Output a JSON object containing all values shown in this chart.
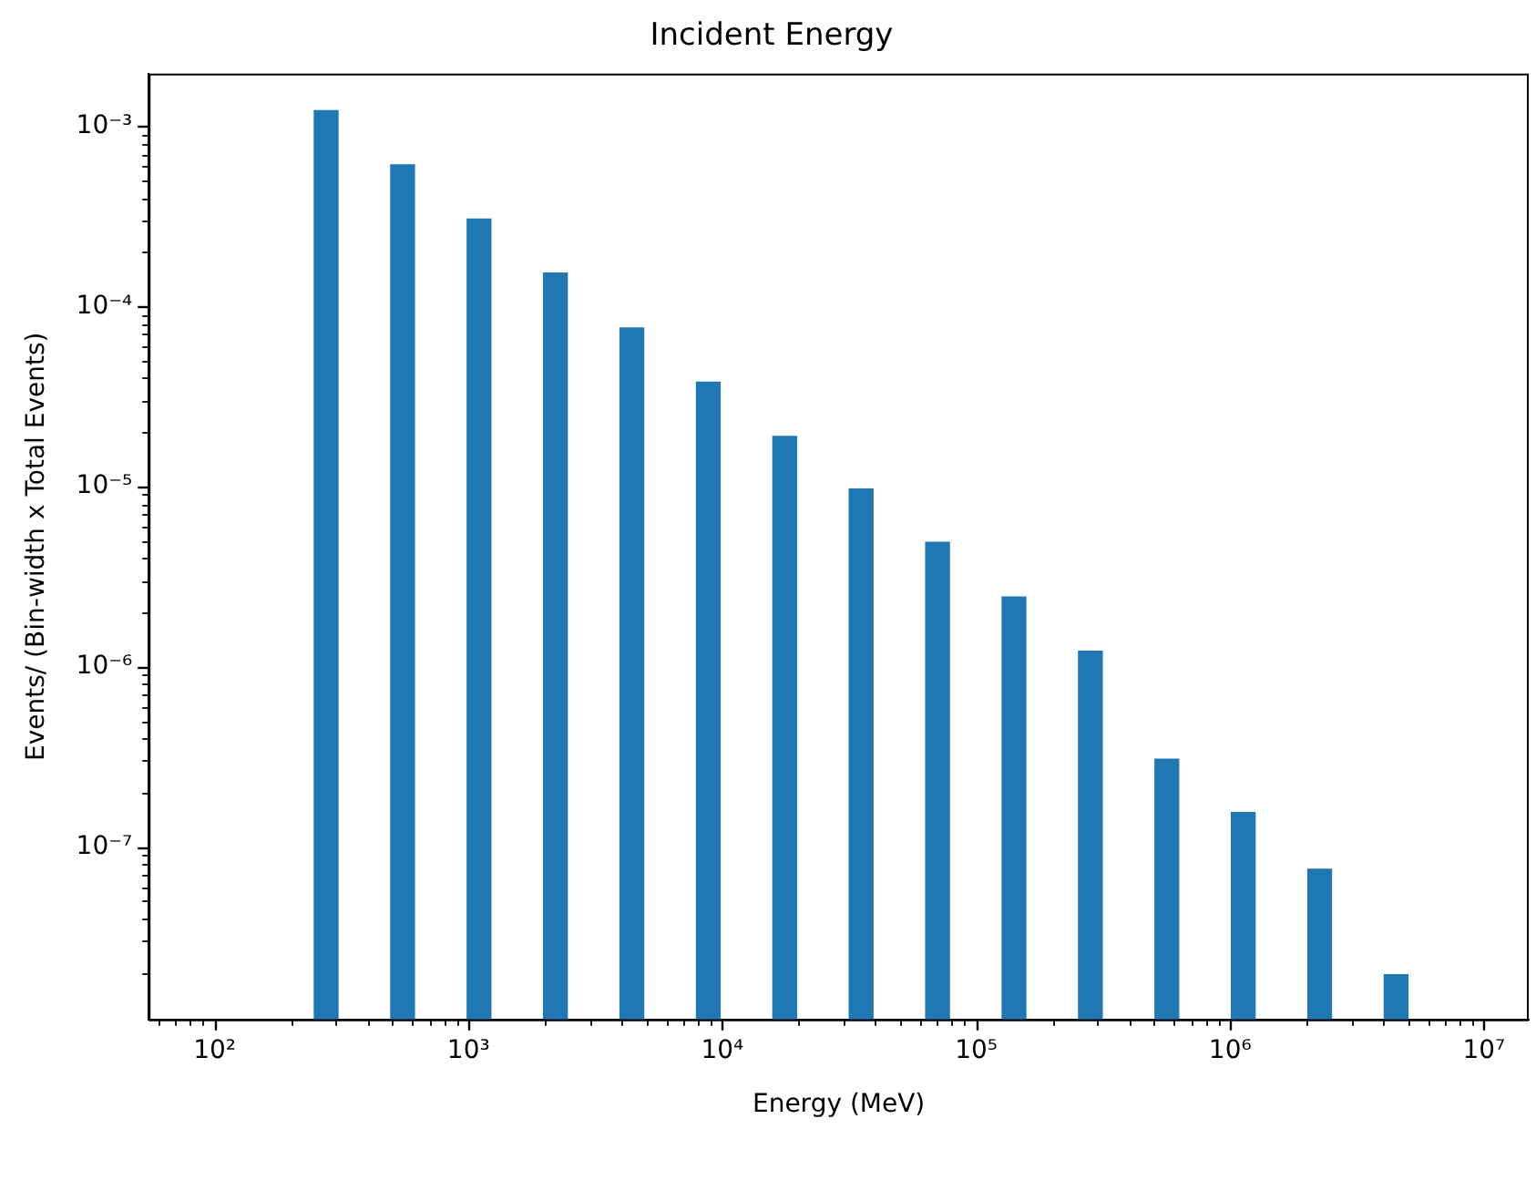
{
  "chart_data": {
    "type": "bar",
    "title": "Incident Energy",
    "xlabel": "Energy (MeV)",
    "ylabel": "Events/ (Bin-width x Total Events)",
    "x": [
      275,
      550,
      1100,
      2200,
      4400,
      8800,
      17600,
      35200,
      70400,
      140800,
      281600,
      563200,
      1126400,
      2252800,
      4505600
    ],
    "values": [
      0.00122,
      0.00061,
      0.000305,
      0.000153,
      7.6e-05,
      3.8e-05,
      1.9e-05,
      9.7e-06,
      4.9e-06,
      2.44e-06,
      1.22e-06,
      3.06e-07,
      1.55e-07,
      7.5e-08,
      1.95e-08
    ],
    "color": "#1f77b4",
    "log": "xy",
    "grid": false,
    "legend": false,
    "xlim": [
      55,
      15000000.0
    ],
    "ylim": [
      1.1e-08,
      0.00196
    ],
    "xticks": [
      {
        "value": 60,
        "label": null
      },
      {
        "value": 70,
        "label": null
      },
      {
        "value": 80,
        "label": null
      },
      {
        "value": 90,
        "label": null
      },
      {
        "value": 100,
        "label": "10²"
      },
      {
        "value": 200,
        "label": null
      },
      {
        "value": 300,
        "label": null
      },
      {
        "value": 400,
        "label": null
      },
      {
        "value": 500,
        "label": null
      },
      {
        "value": 600,
        "label": null
      },
      {
        "value": 700,
        "label": null
      },
      {
        "value": 800,
        "label": null
      },
      {
        "value": 900,
        "label": null
      },
      {
        "value": 1000,
        "label": "10³"
      },
      {
        "value": 2000,
        "label": null
      },
      {
        "value": 3000,
        "label": null
      },
      {
        "value": 4000,
        "label": null
      },
      {
        "value": 5000,
        "label": null
      },
      {
        "value": 6000,
        "label": null
      },
      {
        "value": 7000,
        "label": null
      },
      {
        "value": 8000,
        "label": null
      },
      {
        "value": 9000,
        "label": null
      },
      {
        "value": 10000,
        "label": "10⁴"
      },
      {
        "value": 20000,
        "label": null
      },
      {
        "value": 30000,
        "label": null
      },
      {
        "value": 40000,
        "label": null
      },
      {
        "value": 50000,
        "label": null
      },
      {
        "value": 60000,
        "label": null
      },
      {
        "value": 70000,
        "label": null
      },
      {
        "value": 80000,
        "label": null
      },
      {
        "value": 90000,
        "label": null
      },
      {
        "value": 100000,
        "label": "10⁵"
      },
      {
        "value": 200000,
        "label": null
      },
      {
        "value": 300000,
        "label": null
      },
      {
        "value": 400000,
        "label": null
      },
      {
        "value": 500000,
        "label": null
      },
      {
        "value": 600000,
        "label": null
      },
      {
        "value": 700000,
        "label": null
      },
      {
        "value": 800000,
        "label": null
      },
      {
        "value": 900000,
        "label": null
      },
      {
        "value": 1000000,
        "label": "10⁶"
      },
      {
        "value": 2000000,
        "label": null
      },
      {
        "value": 3000000,
        "label": null
      },
      {
        "value": 4000000,
        "label": null
      },
      {
        "value": 5000000,
        "label": null
      },
      {
        "value": 6000000,
        "label": null
      },
      {
        "value": 7000000,
        "label": null
      },
      {
        "value": 8000000,
        "label": null
      },
      {
        "value": 9000000,
        "label": null
      },
      {
        "value": 10000000,
        "label": "10⁷"
      }
    ],
    "yticks": [
      {
        "value": 2e-08,
        "label": null
      },
      {
        "value": 3e-08,
        "label": null
      },
      {
        "value": 4e-08,
        "label": null
      },
      {
        "value": 5e-08,
        "label": null
      },
      {
        "value": 6e-08,
        "label": null
      },
      {
        "value": 7e-08,
        "label": null
      },
      {
        "value": 8e-08,
        "label": null
      },
      {
        "value": 9e-08,
        "label": null
      },
      {
        "value": 1e-07,
        "label": "10⁻⁷"
      },
      {
        "value": 2e-07,
        "label": null
      },
      {
        "value": 3e-07,
        "label": null
      },
      {
        "value": 4e-07,
        "label": null
      },
      {
        "value": 5e-07,
        "label": null
      },
      {
        "value": 6e-07,
        "label": null
      },
      {
        "value": 7e-07,
        "label": null
      },
      {
        "value": 8e-07,
        "label": null
      },
      {
        "value": 9e-07,
        "label": null
      },
      {
        "value": 1e-06,
        "label": "10⁻⁶"
      },
      {
        "value": 2e-06,
        "label": null
      },
      {
        "value": 3e-06,
        "label": null
      },
      {
        "value": 4e-06,
        "label": null
      },
      {
        "value": 5e-06,
        "label": null
      },
      {
        "value": 6e-06,
        "label": null
      },
      {
        "value": 7e-06,
        "label": null
      },
      {
        "value": 8e-06,
        "label": null
      },
      {
        "value": 9e-06,
        "label": null
      },
      {
        "value": 1e-05,
        "label": "10⁻⁵"
      },
      {
        "value": 2e-05,
        "label": null
      },
      {
        "value": 3e-05,
        "label": null
      },
      {
        "value": 4e-05,
        "label": null
      },
      {
        "value": 5e-05,
        "label": null
      },
      {
        "value": 6e-05,
        "label": null
      },
      {
        "value": 7e-05,
        "label": null
      },
      {
        "value": 8e-05,
        "label": null
      },
      {
        "value": 9e-05,
        "label": null
      },
      {
        "value": 0.0001,
        "label": "10⁻⁴"
      },
      {
        "value": 0.0002,
        "label": null
      },
      {
        "value": 0.0003,
        "label": null
      },
      {
        "value": 0.0004,
        "label": null
      },
      {
        "value": 0.0005,
        "label": null
      },
      {
        "value": 0.0006,
        "label": null
      },
      {
        "value": 0.0007,
        "label": null
      },
      {
        "value": 0.0008,
        "label": null
      },
      {
        "value": 0.0009,
        "label": null
      },
      {
        "value": 0.001,
        "label": "10⁻³"
      }
    ]
  }
}
